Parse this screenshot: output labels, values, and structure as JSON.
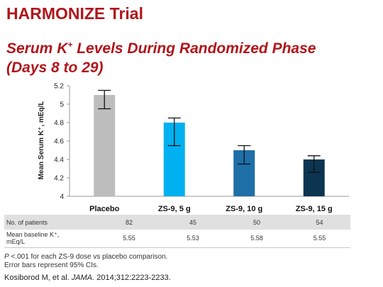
{
  "header": {
    "title": "HARMONIZE Trial",
    "subtitle_line1_pre": "Serum K",
    "subtitle_sup": "+",
    "subtitle_line1_post": " Levels During Randomized Phase",
    "subtitle_line2": "(Days 8 to 29)"
  },
  "chart_data": {
    "type": "bar",
    "title": "",
    "xlabel": "",
    "ylabel": "Mean Serum K⁺, mEq/L",
    "ylim": [
      4,
      5.2
    ],
    "yticks": [
      "4",
      "4.2",
      "4.4",
      "4.6",
      "4.8",
      "5",
      "5.2"
    ],
    "grid": false,
    "categories": [
      "Placebo",
      "ZS-9, 5 g",
      "ZS-9, 10 g",
      "ZS-9, 15 g"
    ],
    "values": [
      5.1,
      4.8,
      4.5,
      4.4
    ],
    "ci_low": [
      4.95,
      4.55,
      4.35,
      4.26
    ],
    "ci_high": [
      5.15,
      4.85,
      4.55,
      4.44
    ],
    "colors": [
      "#bdbdbd",
      "#00b0f0",
      "#1f6fa8",
      "#0b3550"
    ]
  },
  "table": {
    "rows": [
      {
        "label": "No. of patients",
        "values": [
          "82",
          "45",
          "50",
          "54"
        ]
      },
      {
        "label_line1": "Mean baseline K⁺,",
        "label_line2": "mEq/L",
        "values": [
          "5.55",
          "5.53",
          "5.58",
          "5.55"
        ]
      }
    ]
  },
  "footnote": {
    "p_italic": "P",
    "line1_rest": " <.001 for each ZS-9 dose vs placebo comparison.",
    "line2": "Error bars represent 95% CIs."
  },
  "citation": {
    "pre": "Kosiborod M, et al. ",
    "journal": "JAMA",
    "post": ". 2014;312:2223-2233."
  }
}
